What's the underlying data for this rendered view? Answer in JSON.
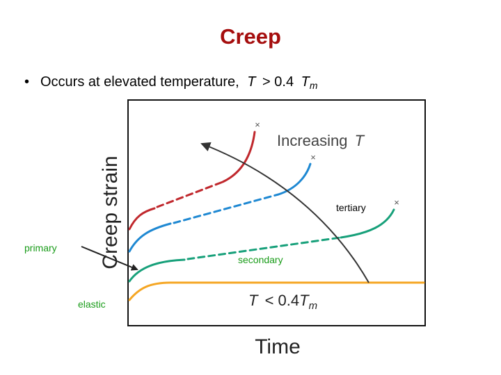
{
  "header": {
    "title": "Creep"
  },
  "bullet": {
    "text": "Occurs at elevated temperature,",
    "var": "T",
    "relation": "> 0.4",
    "var2": "T",
    "sub": "m"
  },
  "diagram": {
    "y_label": "Creep strain",
    "x_label": "Time",
    "arrow_label": {
      "text": "Increasing",
      "var": "T"
    },
    "low_label": {
      "var": "T",
      "relation": "< 0.4",
      "var2": "T",
      "sub": "m"
    },
    "stages": {
      "primary": "primary",
      "secondary": "secondary",
      "tertiary": "tertiary",
      "elastic": "elastic"
    }
  }
}
